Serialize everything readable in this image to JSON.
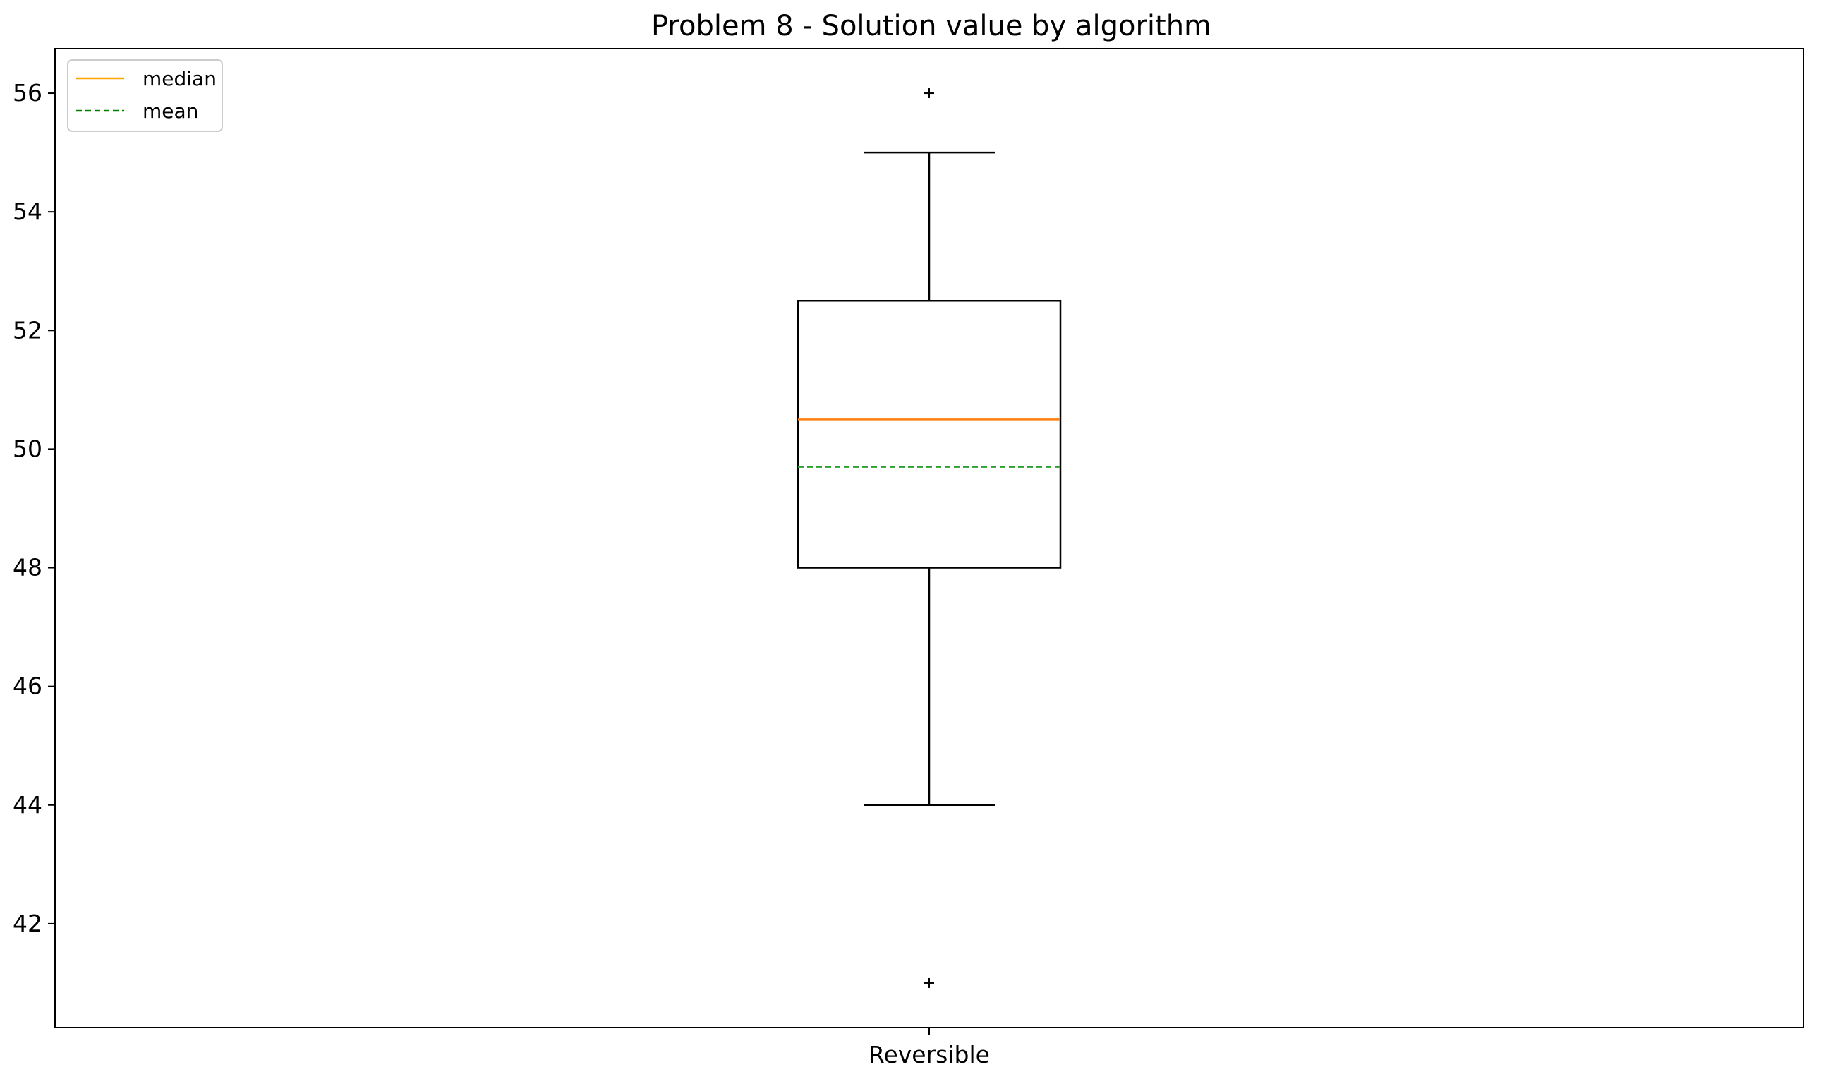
{
  "chart_data": {
    "type": "box",
    "title": "Problem 8 - Solution value by algorithm",
    "xlabel": "",
    "ylabel": "",
    "categories": [
      "Reversible"
    ],
    "ylim": [
      40.25,
      56.75
    ],
    "yticks": [
      42,
      44,
      46,
      48,
      50,
      52,
      54,
      56
    ],
    "grid": false,
    "legend": {
      "placement": "top-left",
      "entries": [
        {
          "label": "median",
          "color": "#ffa500",
          "style": "solid"
        },
        {
          "label": "mean",
          "color": "#008000",
          "style": "dashed"
        }
      ]
    },
    "boxes": [
      {
        "category": "Reversible",
        "whisker_low": 44,
        "q1": 48,
        "median": 50.5,
        "mean": 49.7,
        "q3": 52.5,
        "whisker_high": 55,
        "outliers": [
          56,
          41
        ]
      }
    ],
    "colors": {
      "box": "#000000",
      "median": "#ff7f0e",
      "mean": "#2ca02c",
      "legend_median": "#ffa500",
      "legend_mean": "#008000"
    }
  }
}
